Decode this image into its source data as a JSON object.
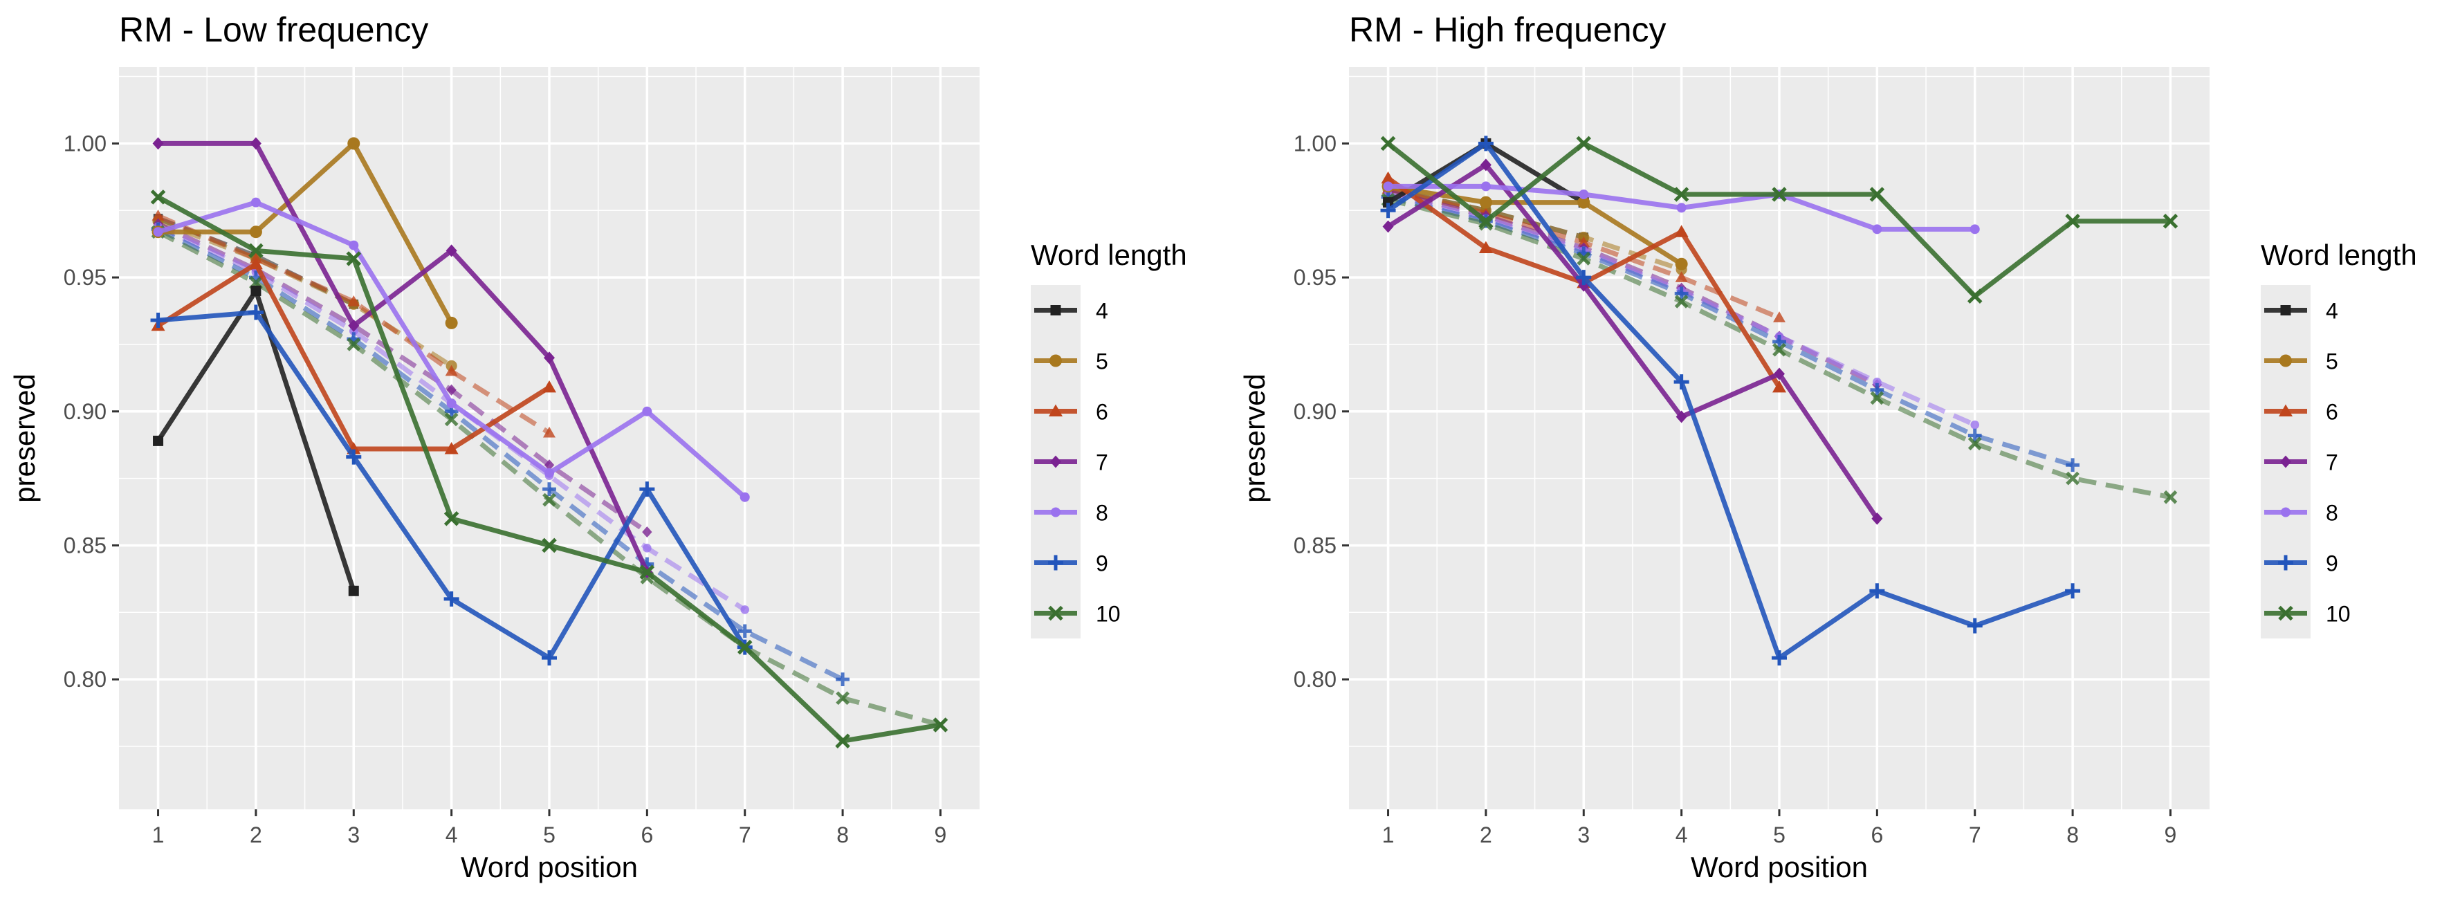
{
  "chart_data": [
    {
      "type": "line",
      "title": "RM - Low frequency",
      "xlabel": "Word position",
      "ylabel": "preserved",
      "xlim": [
        0.6,
        9.4
      ],
      "ylim": [
        0.7515,
        1.0285
      ],
      "x_ticks": [
        1,
        2,
        3,
        4,
        5,
        6,
        7,
        8,
        9
      ],
      "y_ticks": [
        0.8,
        0.85,
        0.9,
        0.95,
        1.0
      ],
      "x_tick_labels": [
        "1",
        "2",
        "3",
        "4",
        "5",
        "6",
        "7",
        "8",
        "9"
      ],
      "y_tick_labels": [
        "0.80",
        "0.85",
        "0.90",
        "0.95",
        "1.00"
      ],
      "grid": true,
      "legend": {
        "title": "Word length",
        "position": "right",
        "entries": [
          "4",
          "5",
          "6",
          "7",
          "8",
          "9",
          "10"
        ]
      },
      "series": [
        {
          "name": "4",
          "color": "#222222",
          "marker": "square",
          "observed": {
            "x": [
              1,
              2,
              3
            ],
            "y": [
              0.889,
              0.945,
              0.833
            ]
          },
          "predicted": {
            "x": [
              1,
              2,
              3
            ],
            "y": [
              0.972,
              0.958,
              0.94
            ]
          }
        },
        {
          "name": "5",
          "color": "#A8781E",
          "marker": "circle",
          "observed": {
            "x": [
              1,
              2,
              3,
              4
            ],
            "y": [
              0.967,
              0.967,
              1.0,
              0.933
            ]
          },
          "predicted": {
            "x": [
              1,
              2,
              3,
              4
            ],
            "y": [
              0.971,
              0.957,
              0.94,
              0.917
            ]
          }
        },
        {
          "name": "6",
          "color": "#C0451C",
          "marker": "triangle",
          "observed": {
            "x": [
              1,
              2,
              3,
              4,
              5
            ],
            "y": [
              0.932,
              0.955,
              0.886,
              0.886,
              0.909
            ]
          },
          "predicted": {
            "x": [
              1,
              2,
              3,
              4,
              5
            ],
            "y": [
              0.973,
              0.957,
              0.941,
              0.915,
              0.892
            ]
          }
        },
        {
          "name": "7",
          "color": "#7A2291",
          "marker": "diamond",
          "observed": {
            "x": [
              1,
              2,
              3,
              4,
              5,
              6
            ],
            "y": [
              1.0,
              1.0,
              0.932,
              0.96,
              0.92,
              0.84
            ]
          },
          "predicted": {
            "x": [
              1,
              2,
              3,
              4,
              5,
              6
            ],
            "y": [
              0.97,
              0.953,
              0.932,
              0.908,
              0.88,
              0.855
            ]
          }
        },
        {
          "name": "8",
          "color": "#9A72EE",
          "marker": "dot",
          "observed": {
            "x": [
              1,
              2,
              3,
              4,
              5,
              6,
              7
            ],
            "y": [
              0.967,
              0.978,
              0.962,
              0.903,
              0.877,
              0.9,
              0.868
            ]
          },
          "predicted": {
            "x": [
              1,
              2,
              3,
              4,
              5,
              6,
              7
            ],
            "y": [
              0.969,
              0.952,
              0.93,
              0.903,
              0.876,
              0.849,
              0.826
            ]
          }
        },
        {
          "name": "9",
          "color": "#2255BB",
          "marker": "plus",
          "observed": {
            "x": [
              1,
              2,
              3,
              4,
              5,
              6,
              7
            ],
            "y": [
              0.934,
              0.937,
              0.883,
              0.83,
              0.808,
              0.871,
              0.812
            ]
          },
          "predicted": {
            "x": [
              1,
              2,
              3,
              4,
              5,
              6,
              7,
              8
            ],
            "y": [
              0.968,
              0.95,
              0.927,
              0.9,
              0.871,
              0.843,
              0.818,
              0.8
            ]
          }
        },
        {
          "name": "10",
          "color": "#3A7030",
          "marker": "x",
          "observed": {
            "x": [
              1,
              2,
              3,
              4,
              5,
              6,
              7,
              8,
              9
            ],
            "y": [
              0.98,
              0.96,
              0.957,
              0.86,
              0.85,
              0.84,
              0.812,
              0.777,
              0.783
            ]
          },
          "predicted": {
            "x": [
              1,
              2,
              3,
              4,
              5,
              6,
              7,
              8,
              9
            ],
            "y": [
              0.967,
              0.948,
              0.925,
              0.897,
              0.867,
              0.838,
              0.812,
              0.793,
              0.783
            ]
          }
        }
      ]
    },
    {
      "type": "line",
      "title": "RM - High frequency",
      "xlabel": "Word position",
      "ylabel": "preserved",
      "xlim": [
        0.6,
        9.4
      ],
      "ylim": [
        0.7515,
        1.0285
      ],
      "x_ticks": [
        1,
        2,
        3,
        4,
        5,
        6,
        7,
        8,
        9
      ],
      "y_ticks": [
        0.8,
        0.85,
        0.9,
        0.95,
        1.0
      ],
      "x_tick_labels": [
        "1",
        "2",
        "3",
        "4",
        "5",
        "6",
        "7",
        "8",
        "9"
      ],
      "y_tick_labels": [
        "0.80",
        "0.85",
        "0.90",
        "0.95",
        "1.00"
      ],
      "grid": true,
      "legend": {
        "title": "Word length",
        "position": "right",
        "entries": [
          "4",
          "5",
          "6",
          "7",
          "8",
          "9",
          "10"
        ]
      },
      "series": [
        {
          "name": "4",
          "color": "#222222",
          "marker": "square",
          "observed": {
            "x": [
              1,
              2,
              3
            ],
            "y": [
              0.978,
              1.0,
              0.978
            ]
          },
          "predicted": {
            "x": [
              1,
              2,
              3
            ],
            "y": [
              0.983,
              0.975,
              0.965
            ]
          }
        },
        {
          "name": "5",
          "color": "#A8781E",
          "marker": "circle",
          "observed": {
            "x": [
              1,
              2,
              3,
              4
            ],
            "y": [
              0.984,
              0.978,
              0.978,
              0.955
            ]
          },
          "predicted": {
            "x": [
              1,
              2,
              3,
              4
            ],
            "y": [
              0.983,
              0.975,
              0.965,
              0.953
            ]
          }
        },
        {
          "name": "6",
          "color": "#C0451C",
          "marker": "triangle",
          "observed": {
            "x": [
              1,
              2,
              3,
              4,
              5
            ],
            "y": [
              0.987,
              0.961,
              0.948,
              0.967,
              0.909
            ]
          },
          "predicted": {
            "x": [
              1,
              2,
              3,
              4,
              5
            ],
            "y": [
              0.983,
              0.974,
              0.963,
              0.95,
              0.935
            ]
          }
        },
        {
          "name": "7",
          "color": "#7A2291",
          "marker": "diamond",
          "observed": {
            "x": [
              1,
              2,
              3,
              4,
              5,
              6
            ],
            "y": [
              0.969,
              0.992,
              0.947,
              0.898,
              0.914,
              0.86
            ]
          },
          "predicted": {
            "x": [
              1,
              2,
              3,
              4,
              5,
              6
            ],
            "y": [
              0.982,
              0.973,
              0.961,
              0.946,
              0.928,
              0.91
            ]
          }
        },
        {
          "name": "8",
          "color": "#9A72EE",
          "marker": "dot",
          "observed": {
            "x": [
              1,
              2,
              3,
              4,
              5,
              6,
              7
            ],
            "y": [
              0.984,
              0.984,
              0.981,
              0.976,
              0.981,
              0.968,
              0.968
            ]
          },
          "predicted": {
            "x": [
              1,
              2,
              3,
              4,
              5,
              6,
              7
            ],
            "y": [
              0.981,
              0.972,
              0.96,
              0.945,
              0.928,
              0.911,
              0.895
            ]
          }
        },
        {
          "name": "9",
          "color": "#2255BB",
          "marker": "plus",
          "observed": {
            "x": [
              1,
              2,
              3,
              4,
              5,
              6,
              7,
              8
            ],
            "y": [
              0.975,
              1.0,
              0.95,
              0.911,
              0.808,
              0.833,
              0.82,
              0.833
            ]
          },
          "predicted": {
            "x": [
              1,
              2,
              3,
              4,
              5,
              6,
              7,
              8
            ],
            "y": [
              0.98,
              0.971,
              0.959,
              0.944,
              0.926,
              0.908,
              0.891,
              0.88
            ]
          }
        },
        {
          "name": "10",
          "color": "#3A7030",
          "marker": "x",
          "observed": {
            "x": [
              1,
              2,
              3,
              4,
              5,
              6,
              7,
              8,
              9
            ],
            "y": [
              1.0,
              0.971,
              1.0,
              0.981,
              0.981,
              0.981,
              0.943,
              0.971,
              0.971
            ]
          },
          "predicted": {
            "x": [
              1,
              2,
              3,
              4,
              5,
              6,
              7,
              8,
              9
            ],
            "y": [
              0.979,
              0.97,
              0.957,
              0.941,
              0.923,
              0.905,
              0.888,
              0.875,
              0.868
            ]
          }
        }
      ]
    }
  ]
}
